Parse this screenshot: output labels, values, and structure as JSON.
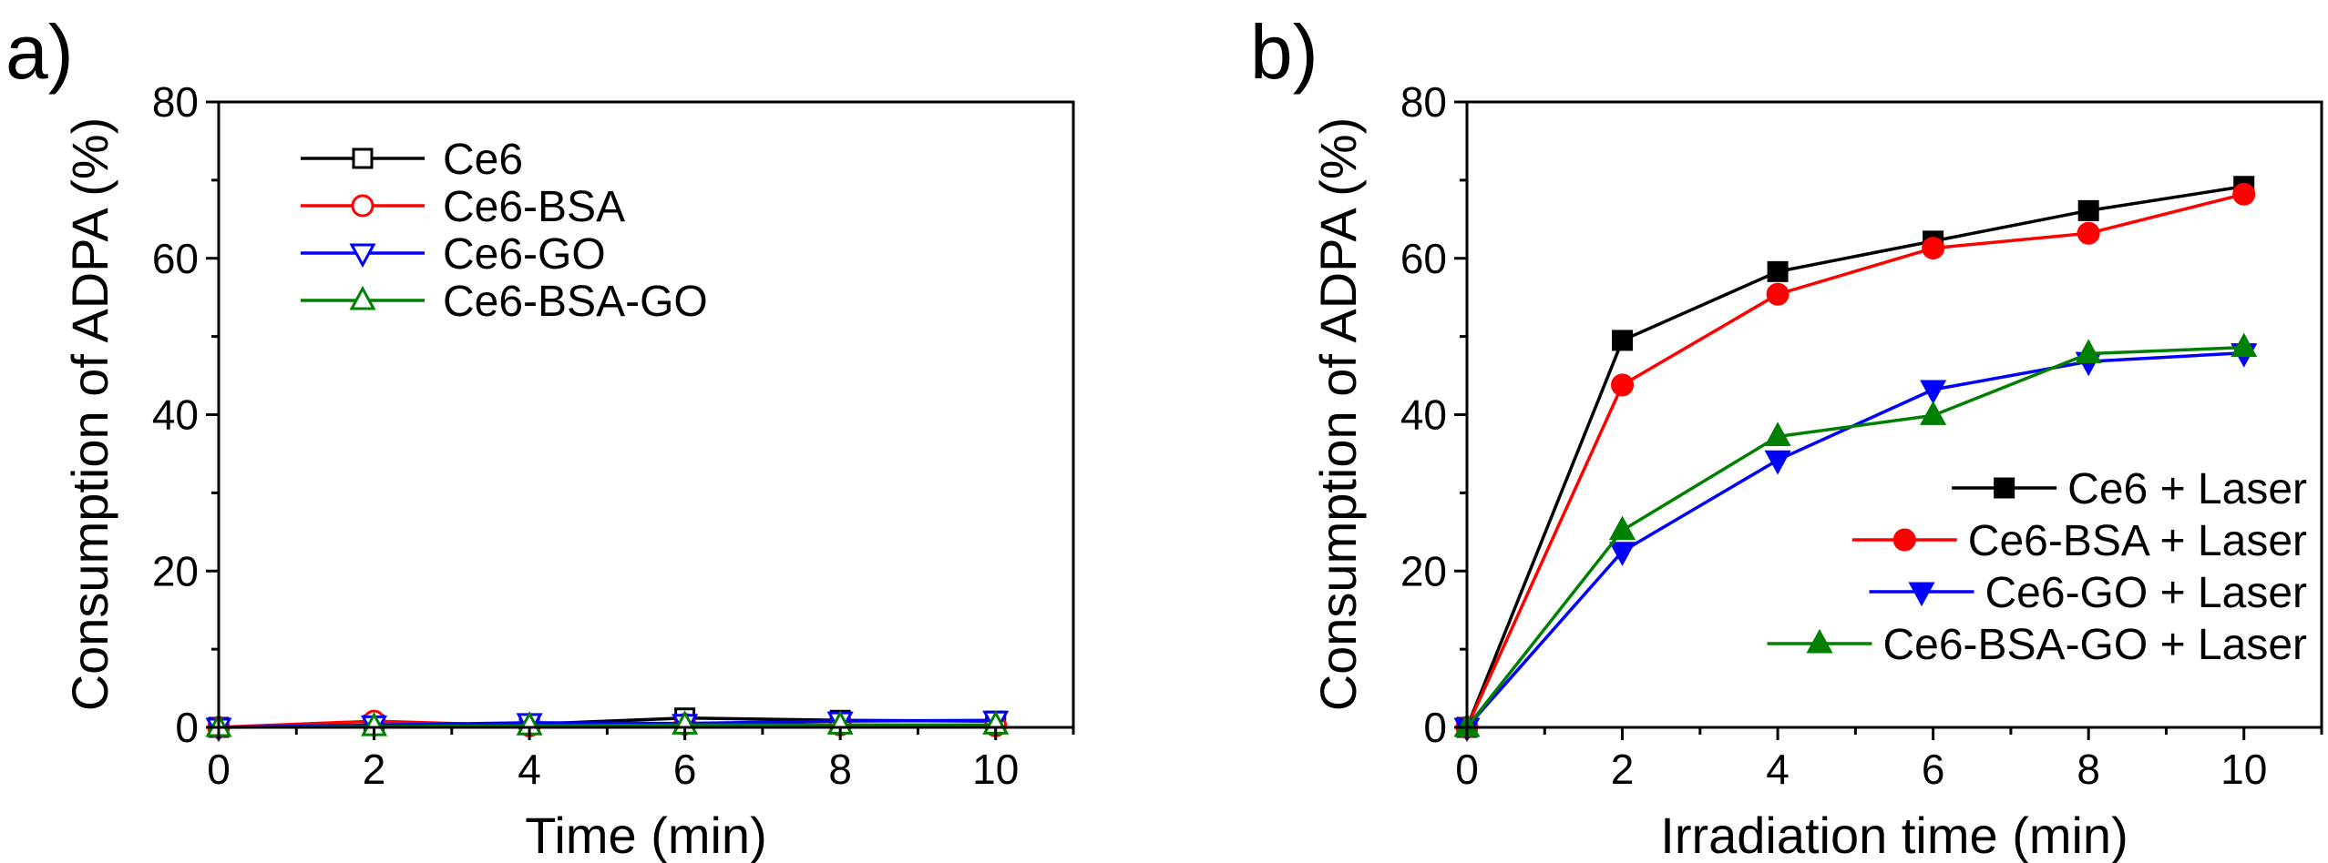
{
  "chart_data": [
    {
      "panel_label": "a)",
      "type": "line",
      "title": "",
      "xlabel": "Time (min)",
      "ylabel": "Consumption of ADPA (%)",
      "xlim": [
        0,
        11
      ],
      "ylim": [
        0,
        80
      ],
      "x_ticks": [
        "0",
        "2",
        "4",
        "6",
        "8",
        "10"
      ],
      "y_ticks": [
        "0",
        "20",
        "40",
        "60",
        "80"
      ],
      "legend_position": "top-left",
      "series": [
        {
          "name": "Ce6",
          "color": "#000000",
          "marker": "square-open",
          "x": [
            0,
            2,
            4,
            6,
            8,
            10
          ],
          "values": [
            0,
            0.3,
            0.4,
            1.2,
            0.9,
            0.8
          ]
        },
        {
          "name": "Ce6-BSA",
          "color": "#ff0000",
          "marker": "circle-open",
          "x": [
            0,
            2,
            4,
            6,
            8,
            10
          ],
          "values": [
            0,
            0.8,
            0.2,
            0.4,
            0.3,
            0.2
          ]
        },
        {
          "name": "Ce6-GO",
          "color": "#0000ff",
          "marker": "triangle-down-open",
          "x": [
            0,
            2,
            4,
            6,
            8,
            10
          ],
          "values": [
            0,
            0.3,
            0.6,
            0.5,
            0.8,
            0.9
          ]
        },
        {
          "name": "Ce6-BSA-GO",
          "color": "#008000",
          "marker": "triangle-up-open",
          "x": [
            0,
            2,
            4,
            6,
            8,
            10
          ],
          "values": [
            0,
            0.1,
            0.2,
            0.3,
            0.3,
            0.3
          ]
        }
      ]
    },
    {
      "panel_label": "b)",
      "type": "line",
      "title": "",
      "xlabel": "Irradiation time (min)",
      "ylabel": "Consumption of ADPA (%)",
      "xlim": [
        0,
        11
      ],
      "ylim": [
        0,
        80
      ],
      "x_ticks": [
        "0",
        "2",
        "4",
        "6",
        "8",
        "10"
      ],
      "y_ticks": [
        "0",
        "20",
        "40",
        "60",
        "80"
      ],
      "legend_position": "bottom-right",
      "series": [
        {
          "name": "Ce6 + Laser",
          "color": "#000000",
          "marker": "square-filled",
          "x": [
            0,
            2,
            4,
            6,
            8,
            10
          ],
          "values": [
            0,
            49.5,
            58.3,
            62.2,
            66.1,
            69.2
          ]
        },
        {
          "name": "Ce6-BSA + Laser",
          "color": "#ff0000",
          "marker": "circle-filled",
          "x": [
            0,
            2,
            4,
            6,
            8,
            10
          ],
          "values": [
            0,
            43.8,
            55.4,
            61.3,
            63.2,
            68.2
          ]
        },
        {
          "name": "Ce6-GO + Laser",
          "color": "#0000ff",
          "marker": "triangle-down-filled",
          "x": [
            0,
            2,
            4,
            6,
            8,
            10
          ],
          "values": [
            0,
            22.5,
            34.2,
            43.2,
            46.8,
            47.9
          ]
        },
        {
          "name": "Ce6-BSA-GO + Laser",
          "color": "#008000",
          "marker": "triangle-up-filled",
          "x": [
            0,
            2,
            4,
            6,
            8,
            10
          ],
          "values": [
            0,
            25.2,
            37.2,
            39.9,
            47.8,
            48.6
          ]
        }
      ]
    }
  ]
}
